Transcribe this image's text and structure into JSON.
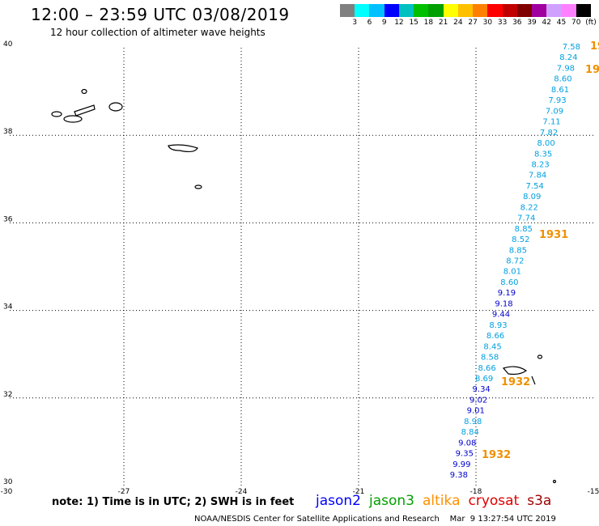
{
  "header": {
    "title": "12:00 – 23:59 UTC 03/08/2019",
    "subtitle": "12 hour collection of altimeter wave heights"
  },
  "colorbar": {
    "colors": [
      "#808080",
      "#00ffff",
      "#00c0ff",
      "#0000ff",
      "#00c0c0",
      "#00c000",
      "#00a000",
      "#ffff00",
      "#ffc000",
      "#ff8000",
      "#ff0000",
      "#c00000",
      "#800000",
      "#a000a0",
      "#d0a0ff",
      "#ff80ff",
      "#000000"
    ],
    "labels": [
      "3",
      "6",
      "9",
      "12",
      "15",
      "18",
      "21",
      "24",
      "27",
      "30",
      "33",
      "36",
      "39",
      "42",
      "45",
      "70",
      "(ft)"
    ]
  },
  "map": {
    "lon_range": [
      -30,
      -15
    ],
    "lat_range": [
      30,
      40
    ],
    "lon_ticks": [
      -30,
      -27,
      -24,
      -21,
      -18,
      -15
    ],
    "lat_ticks": [
      40,
      38,
      36,
      34,
      32,
      30
    ],
    "lon_tick_labels": [
      "-30",
      "-27",
      "-24",
      "-21",
      "-18",
      "-15"
    ],
    "lat_tick_labels": [
      "40",
      "38",
      "36",
      "34",
      "32",
      "30"
    ]
  },
  "track": {
    "points": [
      {
        "v": "7.58",
        "c": "#00a0e0"
      },
      {
        "v": "8.24",
        "c": "#00a0e0"
      },
      {
        "v": "7.98",
        "c": "#00a0e0"
      },
      {
        "v": "8.60",
        "c": "#00a0e0"
      },
      {
        "v": "8.61",
        "c": "#00a0e0"
      },
      {
        "v": "7.93",
        "c": "#00a0e0"
      },
      {
        "v": "7.09",
        "c": "#00a0e0"
      },
      {
        "v": "7.11",
        "c": "#00a0e0"
      },
      {
        "v": "7.82",
        "c": "#00a0e0"
      },
      {
        "v": "8.00",
        "c": "#00a0e0"
      },
      {
        "v": "8.35",
        "c": "#00a0e0"
      },
      {
        "v": "8.23",
        "c": "#00a0e0"
      },
      {
        "v": "7.84",
        "c": "#00a0e0"
      },
      {
        "v": "7.54",
        "c": "#00a0e0"
      },
      {
        "v": "8.09",
        "c": "#00a0e0"
      },
      {
        "v": "8.22",
        "c": "#00a0e0"
      },
      {
        "v": "7.74",
        "c": "#00a0e0"
      },
      {
        "v": "8.85",
        "c": "#00a0e0"
      },
      {
        "v": "8.52",
        "c": "#00a0e0"
      },
      {
        "v": "8.85",
        "c": "#00a0e0"
      },
      {
        "v": "8.72",
        "c": "#00a0e0"
      },
      {
        "v": "8.01",
        "c": "#00a0e0"
      },
      {
        "v": "8.60",
        "c": "#00a0e0"
      },
      {
        "v": "9.19",
        "c": "#0000d0"
      },
      {
        "v": "9.18",
        "c": "#0000d0"
      },
      {
        "v": "9.44",
        "c": "#0000d0"
      },
      {
        "v": "8.93",
        "c": "#00a0e0"
      },
      {
        "v": "8.66",
        "c": "#00a0e0"
      },
      {
        "v": "8.45",
        "c": "#00a0e0"
      },
      {
        "v": "8.58",
        "c": "#00a0e0"
      },
      {
        "v": "8.66",
        "c": "#00a0e0"
      },
      {
        "v": "8.69",
        "c": "#00a0e0"
      },
      {
        "v": "9.34",
        "c": "#0000d0"
      },
      {
        "v": "9.02",
        "c": "#0000d0"
      },
      {
        "v": "9.01",
        "c": "#0000d0"
      },
      {
        "v": "8.98",
        "c": "#00a0e0"
      },
      {
        "v": "8.84",
        "c": "#00a0e0"
      },
      {
        "v": "9.08",
        "c": "#0000d0"
      },
      {
        "v": "9.35",
        "c": "#0000d0"
      },
      {
        "v": "9.99",
        "c": "#0000d0"
      },
      {
        "v": "9.38",
        "c": "#0000d0"
      }
    ],
    "time_labels": [
      "19",
      "19",
      "1931",
      "1932",
      "1932"
    ],
    "time_color": "#f09000"
  },
  "footer": {
    "note": "note: 1) Time is in UTC; 2) SWH is in feet",
    "satellites": [
      {
        "name": "jason2",
        "color": "#0000ff"
      },
      {
        "name": "jason3",
        "color": "#00a000"
      },
      {
        "name": "altika",
        "color": "#ff9000"
      },
      {
        "name": "cryosat",
        "color": "#e00000"
      },
      {
        "name": "s3a",
        "color": "#a00000"
      }
    ],
    "credit": "NOAA/NESDIS Center for Satellite Applications and Research    Mar  9 13:27:54 UTC 2019"
  }
}
